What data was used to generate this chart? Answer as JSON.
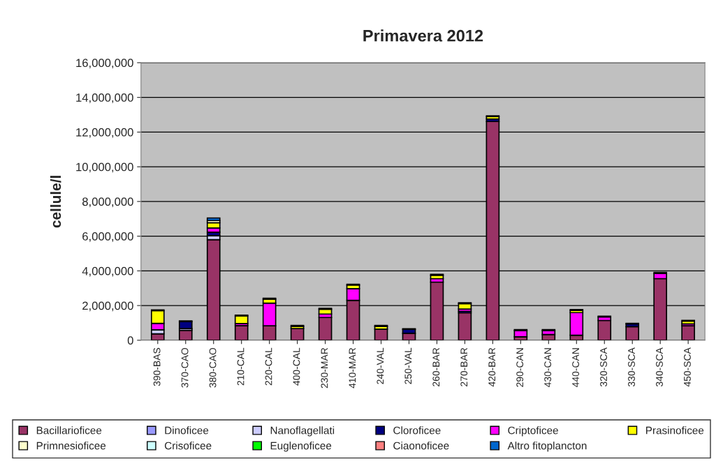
{
  "chart_data": {
    "type": "bar",
    "title": "Primavera 2012",
    "ylabel": "cellule/l",
    "stacked": true,
    "grid": "y",
    "legend": "bottom",
    "categories": [
      "390-BAS",
      "370-CAO",
      "380-CAO",
      "210-CAL",
      "220-CAL",
      "400-CAL",
      "230-MAR",
      "410-MAR",
      "240-VAL",
      "250-VAL",
      "260-BAR",
      "270-BAR",
      "420-BAR",
      "290-CAN",
      "430-CAN",
      "440-CAN",
      "320-SCA",
      "330-SCA",
      "340-SCA",
      "450-SCA"
    ],
    "ylim": [
      0,
      16000000
    ],
    "yticks": [
      {
        "value": 0,
        "label": "0"
      },
      {
        "value": 2000000,
        "label": "2,000,000"
      },
      {
        "value": 4000000,
        "label": "4,000,000"
      },
      {
        "value": 6000000,
        "label": "6,000,000"
      },
      {
        "value": 8000000,
        "label": "8,000,000"
      },
      {
        "value": 10000000,
        "label": "10,000,000"
      },
      {
        "value": 12000000,
        "label": "12,000,000"
      },
      {
        "value": 14000000,
        "label": "14,000,000"
      },
      {
        "value": 16000000,
        "label": "16,000,000"
      }
    ],
    "series": [
      {
        "name": "Bacillarioficee",
        "color": "#993366",
        "values": [
          370000,
          570000,
          5800000,
          840000,
          830000,
          670000,
          1310000,
          2300000,
          640000,
          400000,
          3350000,
          1580000,
          12610000,
          200000,
          330000,
          290000,
          1140000,
          780000,
          3550000,
          830000
        ]
      },
      {
        "name": "Dinoficee",
        "color": "#9999ff",
        "values": [
          0,
          0,
          0,
          0,
          0,
          0,
          0,
          0,
          0,
          0,
          0,
          0,
          0,
          0,
          0,
          0,
          0,
          0,
          0,
          0
        ]
      },
      {
        "name": "Nanoflagellati",
        "color": "#ccccff",
        "values": [
          230000,
          100000,
          230000,
          0,
          0,
          0,
          0,
          0,
          0,
          0,
          0,
          0,
          0,
          0,
          0,
          0,
          0,
          0,
          0,
          0
        ]
      },
      {
        "name": "Cloroficee",
        "color": "#000080",
        "values": [
          0,
          400000,
          200000,
          0,
          0,
          0,
          0,
          0,
          0,
          230000,
          0,
          90000,
          150000,
          0,
          0,
          null,
          0,
          160000,
          0,
          0
        ]
      },
      {
        "name": "Criptoficee",
        "color": "#ff00ff",
        "values": [
          370000,
          0,
          240000,
          120000,
          1310000,
          0,
          200000,
          670000,
          0,
          0,
          200000,
          130000,
          0,
          360000,
          230000,
          1300000,
          200000,
          0,
          310000,
          110000
        ]
      },
      {
        "name": "Prasinoficee",
        "color": "#ffff00",
        "values": [
          730000,
          0,
          300000,
          440000,
          230000,
          130000,
          280000,
          210000,
          160000,
          0,
          200000,
          310000,
          130000,
          0,
          0,
          130000,
          0,
          0,
          0,
          160000
        ]
      },
      {
        "name": "Primnesioficee",
        "color": "#ffffcc",
        "values": [
          0,
          0,
          130000,
          0,
          0,
          0,
          0,
          0,
          0,
          0,
          0,
          0,
          0,
          0,
          0,
          0,
          0,
          0,
          0,
          0
        ]
      },
      {
        "name": "Crisoficee",
        "color": "#ccffff",
        "values": [
          0,
          0,
          0,
          0,
          0,
          0,
          0,
          0,
          0,
          0,
          0,
          0,
          0,
          0,
          0,
          0,
          0,
          0,
          0,
          0
        ]
      },
      {
        "name": "Euglenoficee",
        "color": "#00ff00",
        "values": [
          0,
          0,
          0,
          0,
          0,
          0,
          0,
          0,
          0,
          0,
          0,
          0,
          0,
          0,
          0,
          0,
          0,
          30000,
          0,
          0
        ]
      },
      {
        "name": "Ciaonoficee",
        "color": "#ff8080",
        "values": [
          0,
          0,
          0,
          0,
          0,
          0,
          0,
          0,
          0,
          0,
          0,
          0,
          0,
          0,
          0,
          0,
          0,
          0,
          0,
          0
        ]
      },
      {
        "name": "Altro fitoplancton",
        "color": "#0066cc",
        "values": [
          50000,
          50000,
          150000,
          50000,
          50000,
          50000,
          50000,
          50000,
          50000,
          30000,
          50000,
          50000,
          50000,
          50000,
          50000,
          50000,
          50000,
          0,
          50000,
          50000
        ]
      }
    ]
  }
}
